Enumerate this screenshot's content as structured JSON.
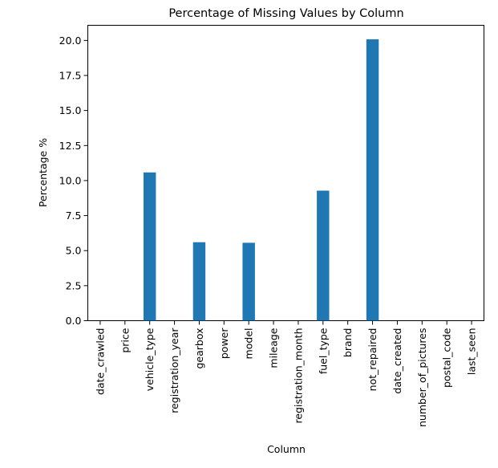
{
  "chart_data": {
    "type": "bar",
    "title": "Percentage of Missing Values by Column",
    "xlabel": "Column",
    "ylabel": "Percentage %",
    "categories": [
      "date_crawled",
      "price",
      "vehicle_type",
      "registration_year",
      "gearbox",
      "power",
      "model",
      "mileage",
      "registration_month",
      "fuel_type",
      "brand",
      "not_repaired",
      "date_created",
      "number_of_pictures",
      "postal_code",
      "last_seen"
    ],
    "values": [
      0,
      0,
      10.58,
      0,
      5.6,
      0,
      5.56,
      0,
      0,
      9.28,
      0,
      20.08,
      0,
      0,
      0,
      0
    ],
    "ylim": [
      0,
      21.08
    ],
    "yticks": [
      "0.0",
      "2.5",
      "5.0",
      "7.5",
      "10.0",
      "12.5",
      "15.0",
      "17.5",
      "20.0"
    ],
    "ytick_values": [
      0,
      2.5,
      5.0,
      7.5,
      10.0,
      12.5,
      15.0,
      17.5,
      20.0
    ],
    "grid": false,
    "colors": {
      "bar": "#1f77b4"
    }
  }
}
